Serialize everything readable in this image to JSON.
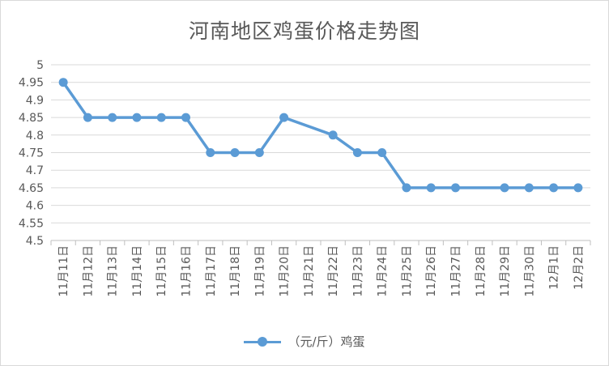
{
  "chart_data": {
    "type": "line",
    "title": "河南地区鸡蛋价格走势图",
    "xlabel": "",
    "ylabel": "",
    "ylim": [
      4.5,
      5.0
    ],
    "yticks": [
      "4.5",
      "4.55",
      "4.6",
      "4.65",
      "4.7",
      "4.75",
      "4.8",
      "4.85",
      "4.9",
      "4.95",
      "5"
    ],
    "grid": true,
    "legend_position": "bottom",
    "categories": [
      "11月11日",
      "11月12日",
      "11月13日",
      "11月14日",
      "11月15日",
      "11月16日",
      "11月17日",
      "11月18日",
      "11月19日",
      "11月20日",
      "11月21日",
      "11月22日",
      "11月23日",
      "11月24日",
      "11月25日",
      "11月26日",
      "11月27日",
      "11月28日",
      "11月29日",
      "11月30日",
      "12月1日",
      "12月2日"
    ],
    "series": [
      {
        "name": "（元/斤）鸡蛋",
        "color": "#5b9bd5",
        "values": [
          4.95,
          4.85,
          4.85,
          4.85,
          4.85,
          4.85,
          4.75,
          4.75,
          4.75,
          4.85,
          null,
          4.8,
          4.75,
          4.75,
          4.65,
          4.65,
          4.65,
          null,
          4.65,
          4.65,
          4.65,
          4.65
        ]
      }
    ]
  }
}
